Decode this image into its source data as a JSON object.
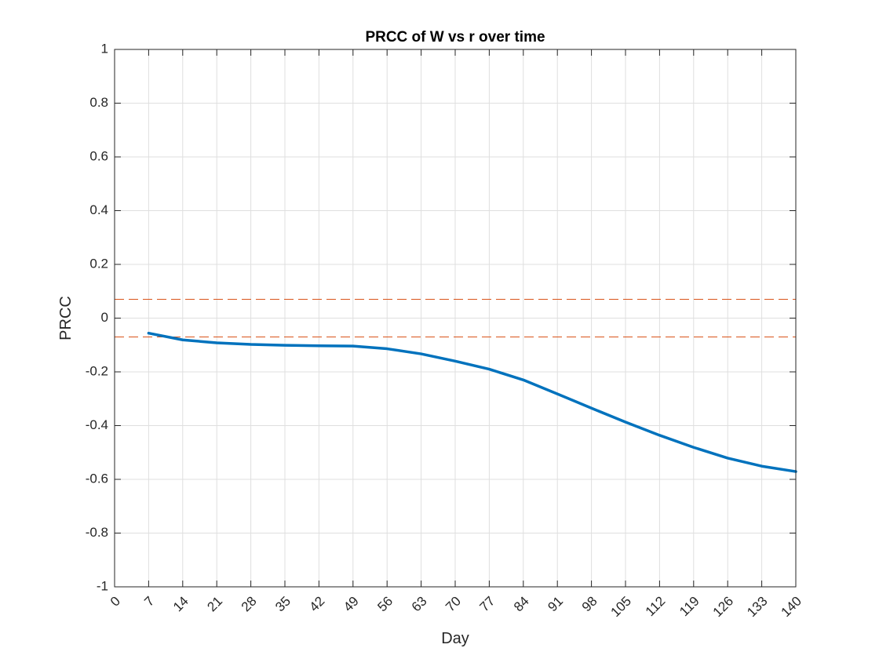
{
  "chart_data": {
    "type": "line",
    "title": "PRCC of W vs r over time",
    "xlabel": "Day",
    "ylabel": "PRCC",
    "xlim": [
      0,
      140
    ],
    "ylim": [
      -1,
      1
    ],
    "grid": true,
    "x_ticks": [
      0,
      7,
      14,
      21,
      28,
      35,
      42,
      49,
      56,
      63,
      70,
      77,
      84,
      91,
      98,
      105,
      112,
      119,
      126,
      133,
      140
    ],
    "x_tick_labels": [
      "0",
      "7",
      "14",
      "21",
      "28",
      "35",
      "42",
      "49",
      "56",
      "63",
      "70",
      "77",
      "84",
      "91",
      "98",
      "105",
      "112",
      "119",
      "126",
      "133",
      "140"
    ],
    "y_ticks": [
      -1,
      -0.8,
      -0.6,
      -0.4,
      -0.2,
      0,
      0.2,
      0.4,
      0.6,
      0.8,
      1
    ],
    "y_tick_labels": [
      "-1",
      "-0.8",
      "-0.6",
      "-0.4",
      "-0.2",
      "0",
      "0.2",
      "0.4",
      "0.6",
      "0.8",
      "1"
    ],
    "series": [
      {
        "color": "#0072BD",
        "style": "solid",
        "x": [
          7,
          14,
          21,
          28,
          35,
          42,
          49,
          56,
          63,
          70,
          77,
          84,
          91,
          98,
          105,
          112,
          119,
          126,
          133,
          140
        ],
        "values": [
          -0.056,
          -0.081,
          -0.092,
          -0.098,
          -0.101,
          -0.103,
          -0.104,
          -0.114,
          -0.133,
          -0.16,
          -0.19,
          -0.23,
          -0.282,
          -0.335,
          -0.387,
          -0.436,
          -0.481,
          -0.521,
          -0.551,
          -0.571
        ]
      }
    ],
    "reference_lines": [
      {
        "y": 0.07,
        "color": "#D95319",
        "style": "dashed"
      },
      {
        "y": -0.07,
        "color": "#D95319",
        "style": "dashed"
      }
    ]
  }
}
